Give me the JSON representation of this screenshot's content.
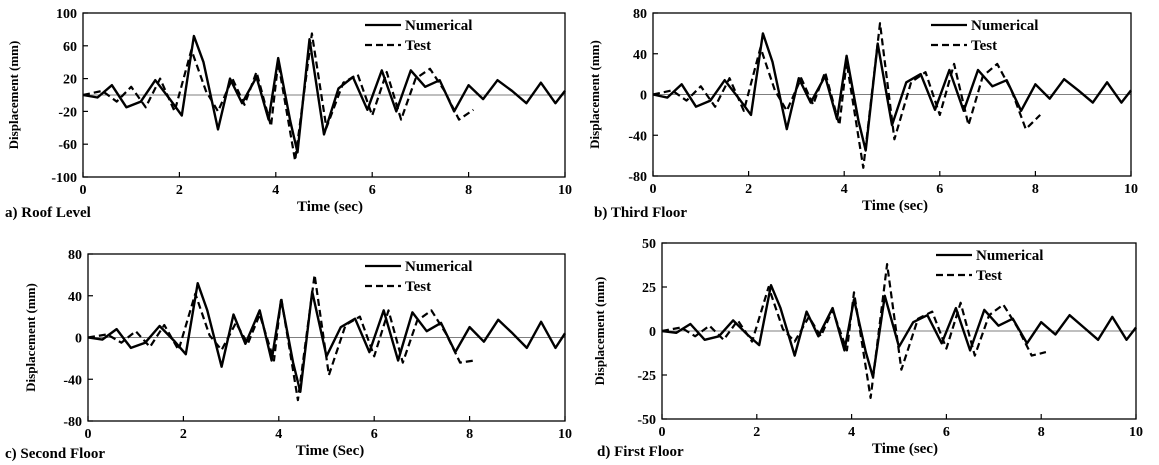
{
  "chart_data": [
    {
      "type": "line",
      "caption": "a) Roof Level",
      "xlabel": "Time (sec)",
      "ylabel": "Displacement (mm)",
      "xlim": [
        0,
        10
      ],
      "ylim": [
        -100,
        100
      ],
      "xticks": [
        "0",
        "2",
        "4",
        "6",
        "8",
        "10"
      ],
      "yticks": [
        "-100",
        "-60",
        "-20",
        "20",
        "60",
        "100"
      ],
      "ytick_values": [
        -100,
        -60,
        -20,
        20,
        60,
        100
      ],
      "legend": "top-right",
      "series": [
        {
          "name": "Numerical",
          "style": "solid",
          "x": [
            0,
            0.3,
            0.6,
            0.9,
            1.2,
            1.5,
            1.8,
            2.05,
            2.3,
            2.5,
            2.8,
            3.05,
            3.3,
            3.6,
            3.85,
            4.05,
            4.3,
            4.45,
            4.7,
            5,
            5.3,
            5.6,
            5.9,
            6.2,
            6.5,
            6.8,
            7.1,
            7.4,
            7.7,
            8,
            8.3,
            8.6,
            8.9,
            9.2,
            9.5,
            9.8,
            10
          ],
          "y": [
            0,
            -3,
            12,
            -15,
            -8,
            18,
            -5,
            -25,
            72,
            40,
            -42,
            20,
            -10,
            22,
            -30,
            45,
            -32,
            -70,
            68,
            -48,
            8,
            22,
            -18,
            30,
            -20,
            30,
            10,
            18,
            -20,
            12,
            -5,
            18,
            5,
            -10,
            15,
            -10,
            5
          ]
        },
        {
          "name": "Test",
          "style": "dashed",
          "x": [
            0,
            0.4,
            0.7,
            1,
            1.3,
            1.6,
            1.9,
            2.25,
            2.55,
            2.8,
            3.1,
            3.35,
            3.6,
            3.9,
            4.05,
            4.4,
            4.75,
            5.05,
            5.4,
            5.7,
            6,
            6.3,
            6.6,
            6.9,
            7.2,
            7.5,
            7.8,
            8.1
          ],
          "y": [
            0,
            5,
            -8,
            10,
            -15,
            20,
            -20,
            55,
            5,
            -20,
            20,
            -12,
            28,
            -38,
            40,
            -80,
            75,
            -40,
            15,
            25,
            -25,
            28,
            -30,
            20,
            32,
            5,
            -30,
            -18
          ]
        }
      ]
    },
    {
      "type": "line",
      "caption": "b) Third Floor",
      "xlabel": "Time (sec)",
      "ylabel": "Displacement (mm)",
      "xlim": [
        0,
        10
      ],
      "ylim": [
        -80,
        80
      ],
      "xticks": [
        "0",
        "2",
        "4",
        "6",
        "8",
        "10"
      ],
      "yticks": [
        "-80",
        "-40",
        "0",
        "40",
        "80"
      ],
      "ytick_values": [
        -80,
        -40,
        0,
        40,
        80
      ],
      "legend": "top-right",
      "series": [
        {
          "name": "Numerical",
          "style": "solid",
          "x": [
            0,
            0.3,
            0.6,
            0.9,
            1.2,
            1.5,
            1.8,
            2.05,
            2.3,
            2.5,
            2.8,
            3.05,
            3.3,
            3.6,
            3.85,
            4.05,
            4.3,
            4.45,
            4.7,
            5,
            5.3,
            5.6,
            5.9,
            6.2,
            6.5,
            6.8,
            7.1,
            7.4,
            7.7,
            8,
            8.3,
            8.6,
            8.9,
            9.2,
            9.5,
            9.8,
            10
          ],
          "y": [
            0,
            -3,
            10,
            -12,
            -6,
            14,
            -4,
            -20,
            60,
            32,
            -34,
            16,
            -8,
            18,
            -24,
            38,
            -26,
            -55,
            50,
            -30,
            12,
            20,
            -15,
            24,
            -16,
            24,
            8,
            14,
            -16,
            10,
            -4,
            15,
            4,
            -8,
            12,
            -8,
            4
          ]
        },
        {
          "name": "Test",
          "style": "dashed",
          "x": [
            0,
            0.4,
            0.7,
            1,
            1.3,
            1.6,
            1.9,
            2.25,
            2.55,
            2.8,
            3.1,
            3.35,
            3.6,
            3.9,
            4.05,
            4.4,
            4.75,
            5.05,
            5.4,
            5.7,
            6,
            6.3,
            6.6,
            6.9,
            7.2,
            7.5,
            7.8,
            8.1
          ],
          "y": [
            0,
            4,
            -6,
            8,
            -12,
            16,
            -16,
            46,
            4,
            -16,
            16,
            -10,
            22,
            -30,
            32,
            -72,
            70,
            -44,
            12,
            22,
            -20,
            30,
            -30,
            18,
            30,
            4,
            -34,
            -20
          ]
        }
      ]
    },
    {
      "type": "line",
      "caption": "c) Second Floor",
      "xlabel": "Time (Sec)",
      "ylabel": "Displacement (mm)",
      "xlim": [
        0,
        10
      ],
      "ylim": [
        -80,
        80
      ],
      "xticks": [
        "0",
        "2",
        "4",
        "6",
        "8",
        "10"
      ],
      "yticks": [
        "-80",
        "-40",
        "0",
        "40",
        "80"
      ],
      "ytick_values": [
        -80,
        -40,
        0,
        40,
        80
      ],
      "legend": "top-right",
      "series": [
        {
          "name": "Numerical",
          "style": "solid",
          "x": [
            0,
            0.3,
            0.6,
            0.9,
            1.2,
            1.5,
            1.8,
            2.05,
            2.3,
            2.5,
            2.8,
            3.05,
            3.3,
            3.6,
            3.85,
            4.05,
            4.3,
            4.45,
            4.7,
            5,
            5.3,
            5.6,
            5.9,
            6.2,
            6.5,
            6.8,
            7.1,
            7.4,
            7.7,
            8,
            8.3,
            8.6,
            8.9,
            9.2,
            9.5,
            9.8,
            10
          ],
          "y": [
            0,
            -2,
            8,
            -10,
            -5,
            11,
            -3,
            -16,
            52,
            26,
            -28,
            22,
            -6,
            26,
            -22,
            36,
            -24,
            -52,
            44,
            -18,
            10,
            18,
            -14,
            26,
            -22,
            24,
            6,
            14,
            -14,
            10,
            -4,
            17,
            4,
            -10,
            15,
            -10,
            4
          ]
        },
        {
          "name": "Test",
          "style": "dashed",
          "x": [
            0,
            0.4,
            0.7,
            1,
            1.3,
            1.6,
            1.9,
            2.25,
            2.55,
            2.8,
            3.1,
            3.35,
            3.6,
            3.9,
            4.05,
            4.4,
            4.75,
            5.05,
            5.4,
            5.7,
            6,
            6.3,
            6.6,
            6.9,
            7.2,
            7.5,
            7.8,
            8.1
          ],
          "y": [
            0,
            3,
            -5,
            6,
            -9,
            12,
            -12,
            42,
            2,
            -12,
            14,
            -6,
            22,
            -22,
            38,
            -60,
            60,
            -36,
            12,
            20,
            -18,
            26,
            -24,
            16,
            26,
            4,
            -24,
            -22
          ]
        }
      ]
    },
    {
      "type": "line",
      "caption": "d) First Floor",
      "xlabel": "Time (sec)",
      "ylabel": "Displacement (mm)",
      "xlim": [
        0,
        10
      ],
      "ylim": [
        -50,
        50
      ],
      "xticks": [
        "0",
        "2",
        "4",
        "6",
        "8",
        "10"
      ],
      "yticks": [
        "-50",
        "-25",
        "0",
        "25",
        "50"
      ],
      "ytick_values": [
        -50,
        -25,
        0,
        25,
        50
      ],
      "legend": "top-right",
      "series": [
        {
          "name": "Numerical",
          "style": "solid",
          "x": [
            0,
            0.3,
            0.6,
            0.9,
            1.2,
            1.5,
            1.8,
            2.05,
            2.3,
            2.5,
            2.8,
            3.05,
            3.3,
            3.6,
            3.85,
            4.05,
            4.3,
            4.45,
            4.7,
            5,
            5.3,
            5.6,
            5.9,
            6.2,
            6.5,
            6.8,
            7.1,
            7.4,
            7.7,
            8,
            8.3,
            8.6,
            8.9,
            9.2,
            9.5,
            9.8,
            10
          ],
          "y": [
            0,
            -1,
            4,
            -5,
            -3,
            6,
            -2,
            -8,
            26,
            13,
            -14,
            11,
            -3,
            13,
            -11,
            18,
            -12,
            -26,
            20,
            -9,
            5,
            9,
            -7,
            13,
            -11,
            12,
            3,
            7,
            -7,
            5,
            -2,
            9,
            2,
            -5,
            8,
            -5,
            2
          ]
        },
        {
          "name": "Test",
          "style": "dashed",
          "x": [
            0,
            0.4,
            0.7,
            1,
            1.3,
            1.6,
            1.9,
            2.25,
            2.55,
            2.8,
            3.1,
            3.35,
            3.6,
            3.9,
            4.05,
            4.4,
            4.75,
            5.05,
            5.4,
            5.7,
            6,
            6.3,
            6.6,
            6.9,
            7.2,
            7.5,
            7.8,
            8.1
          ],
          "y": [
            0,
            2,
            -3,
            3,
            -5,
            6,
            -6,
            25,
            1,
            -6,
            8,
            -3,
            12,
            -11,
            22,
            -38,
            38,
            -22,
            7,
            11,
            -10,
            16,
            -14,
            9,
            15,
            2,
            -14,
            -12
          ]
        }
      ]
    }
  ]
}
